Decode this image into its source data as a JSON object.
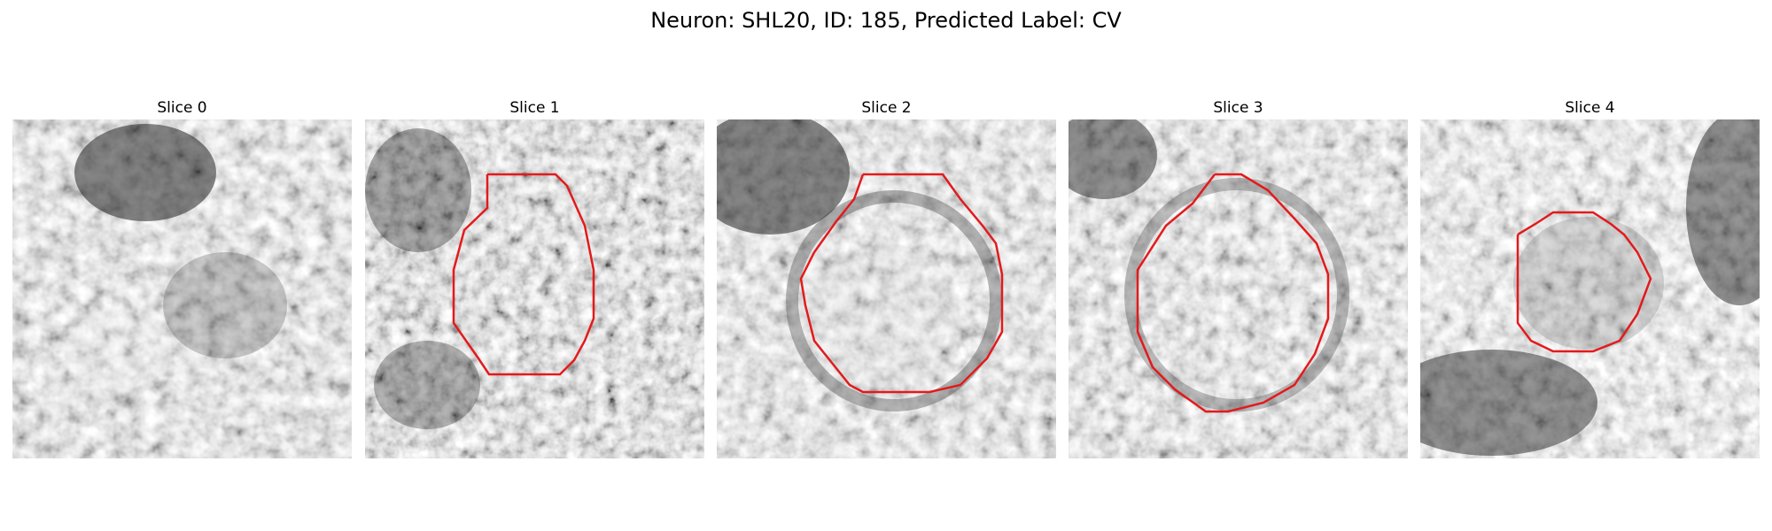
{
  "figure": {
    "title": "Neuron: SHL20, ID: 185, Predicted Label: CV",
    "contour_color": "#e31a1c"
  },
  "panels": [
    {
      "title": "Slice 0",
      "has_contour": false
    },
    {
      "title": "Slice 1",
      "has_contour": true
    },
    {
      "title": "Slice 2",
      "has_contour": true
    },
    {
      "title": "Slice 3",
      "has_contour": true
    },
    {
      "title": "Slice 4",
      "has_contour": true
    }
  ]
}
